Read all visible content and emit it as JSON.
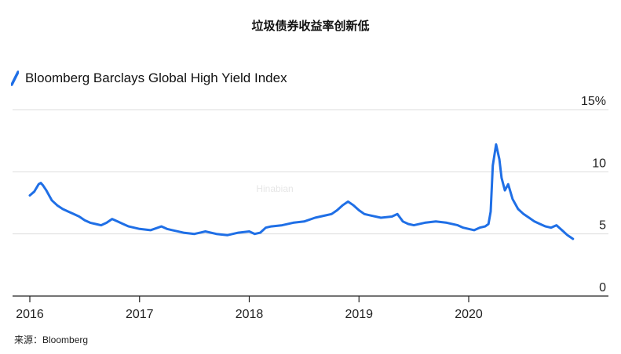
{
  "title": "垃圾债券收益率创新低",
  "source": "来源：Bloomberg",
  "watermark": "Hinabian",
  "colors": {
    "series": "#1f6fe6",
    "grid": "#dddddd",
    "axis": "#222222"
  },
  "chart_data": {
    "type": "line",
    "title": "垃圾债券收益率创新低",
    "xlabel": "",
    "ylabel": "",
    "xlim": [
      2016.0,
      2021.0
    ],
    "ylim": [
      0,
      15
    ],
    "yticks": [
      0,
      5,
      10,
      15
    ],
    "ytick_labels": [
      "0",
      "5",
      "10",
      "15%"
    ],
    "xticks": [
      2016,
      2017,
      2018,
      2019,
      2020
    ],
    "xtick_labels": [
      "2016",
      "2017",
      "2018",
      "2019",
      "2020"
    ],
    "y_axis_side": "right",
    "grid": true,
    "legend": "top-left",
    "series": [
      {
        "name": "Bloomberg Barclays Global High Yield Index",
        "x": [
          2016.0,
          2016.04,
          2016.08,
          2016.1,
          2016.12,
          2016.15,
          2016.2,
          2016.25,
          2016.3,
          2016.35,
          2016.4,
          2016.45,
          2016.5,
          2016.55,
          2016.6,
          2016.65,
          2016.7,
          2016.75,
          2016.8,
          2016.85,
          2016.9,
          2016.95,
          2017.0,
          2017.1,
          2017.2,
          2017.25,
          2017.3,
          2017.4,
          2017.5,
          2017.6,
          2017.7,
          2017.8,
          2017.9,
          2018.0,
          2018.05,
          2018.1,
          2018.15,
          2018.2,
          2018.3,
          2018.4,
          2018.5,
          2018.6,
          2018.7,
          2018.75,
          2018.8,
          2018.85,
          2018.9,
          2018.95,
          2019.0,
          2019.05,
          2019.1,
          2019.2,
          2019.3,
          2019.35,
          2019.4,
          2019.45,
          2019.5,
          2019.6,
          2019.7,
          2019.8,
          2019.9,
          2019.95,
          2020.0,
          2020.05,
          2020.1,
          2020.15,
          2020.18,
          2020.2,
          2020.22,
          2020.25,
          2020.28,
          2020.3,
          2020.33,
          2020.36,
          2020.4,
          2020.45,
          2020.5,
          2020.55,
          2020.6,
          2020.65,
          2020.7,
          2020.75,
          2020.8,
          2020.85,
          2020.9,
          2020.95
        ],
        "y": [
          8.1,
          8.4,
          9.0,
          9.1,
          8.9,
          8.5,
          7.7,
          7.3,
          7.0,
          6.8,
          6.6,
          6.4,
          6.1,
          5.9,
          5.8,
          5.7,
          5.9,
          6.2,
          6.0,
          5.8,
          5.6,
          5.5,
          5.4,
          5.3,
          5.6,
          5.4,
          5.3,
          5.1,
          5.0,
          5.2,
          5.0,
          4.9,
          5.1,
          5.2,
          5.0,
          5.1,
          5.5,
          5.6,
          5.7,
          5.9,
          6.0,
          6.3,
          6.5,
          6.6,
          6.9,
          7.3,
          7.6,
          7.3,
          6.9,
          6.6,
          6.5,
          6.3,
          6.4,
          6.6,
          6.0,
          5.8,
          5.7,
          5.9,
          6.0,
          5.9,
          5.7,
          5.5,
          5.4,
          5.3,
          5.5,
          5.6,
          5.8,
          6.8,
          10.5,
          12.2,
          11.0,
          9.5,
          8.5,
          9.0,
          7.8,
          7.0,
          6.6,
          6.3,
          6.0,
          5.8,
          5.6,
          5.5,
          5.7,
          5.3,
          4.9,
          4.6
        ]
      }
    ]
  }
}
